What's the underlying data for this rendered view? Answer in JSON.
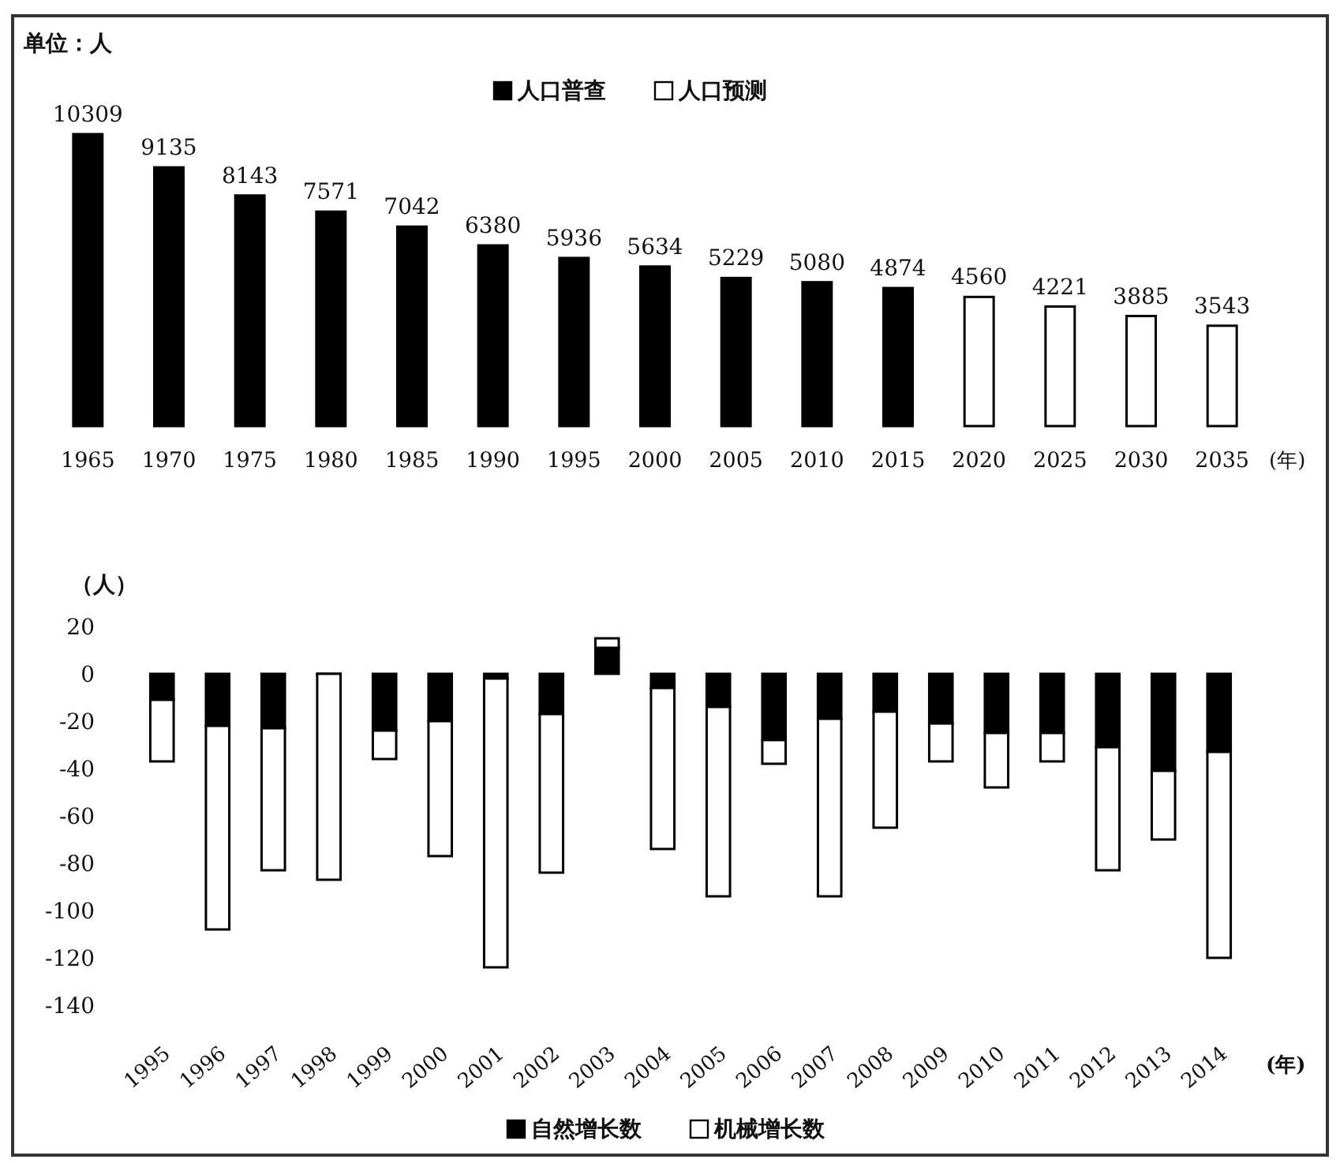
{
  "chart_data": [
    {
      "type": "bar",
      "annotations": [
        "单位：人"
      ],
      "xlabel": "(年)",
      "legend": "top",
      "data_labels": true,
      "categories": [
        "1965",
        "1970",
        "1975",
        "1980",
        "1985",
        "1990",
        "1995",
        "2000",
        "2005",
        "2010",
        "2015",
        "2020",
        "2025",
        "2030",
        "2035"
      ],
      "series": [
        {
          "name": "人口普查",
          "color": "#000000",
          "values": [
            10309,
            9135,
            8143,
            7571,
            7042,
            6380,
            5936,
            5634,
            5229,
            5080,
            4874,
            null,
            null,
            null,
            null
          ]
        },
        {
          "name": "人口预测",
          "color": "#ffffff",
          "values": [
            null,
            null,
            null,
            null,
            null,
            null,
            null,
            null,
            null,
            null,
            null,
            4560,
            4221,
            3885,
            3543
          ]
        }
      ]
    },
    {
      "type": "bar",
      "stacked": true,
      "ylabel": "（人）",
      "xlabel": "(年)",
      "legend": "bottom",
      "ylim": [
        -140,
        20
      ],
      "yticks": [
        20,
        0,
        -20,
        -40,
        -60,
        -80,
        -100,
        -120,
        -140
      ],
      "categories": [
        "1995",
        "1996",
        "1997",
        "1998",
        "1999",
        "2000",
        "2001",
        "2002",
        "2003",
        "2004",
        "2005",
        "2006",
        "2007",
        "2008",
        "2009",
        "2010",
        "2011",
        "2012",
        "2013",
        "2014"
      ],
      "series": [
        {
          "name": "自然增长数",
          "color": "#000000",
          "values": [
            -11,
            -22,
            -23,
            0,
            -24,
            -20,
            -2,
            -17,
            11,
            -6,
            -14,
            -28,
            -19,
            -16,
            -21,
            -25,
            -25,
            -31,
            -41,
            -33
          ]
        },
        {
          "name": "机械增长数",
          "color": "#ffffff",
          "values": [
            -26,
            -86,
            -60,
            -87,
            -12,
            -57,
            -122,
            -67,
            4,
            -68,
            -80,
            -10,
            -75,
            -49,
            -16,
            -23,
            -12,
            -52,
            -29,
            -87
          ]
        }
      ]
    }
  ]
}
